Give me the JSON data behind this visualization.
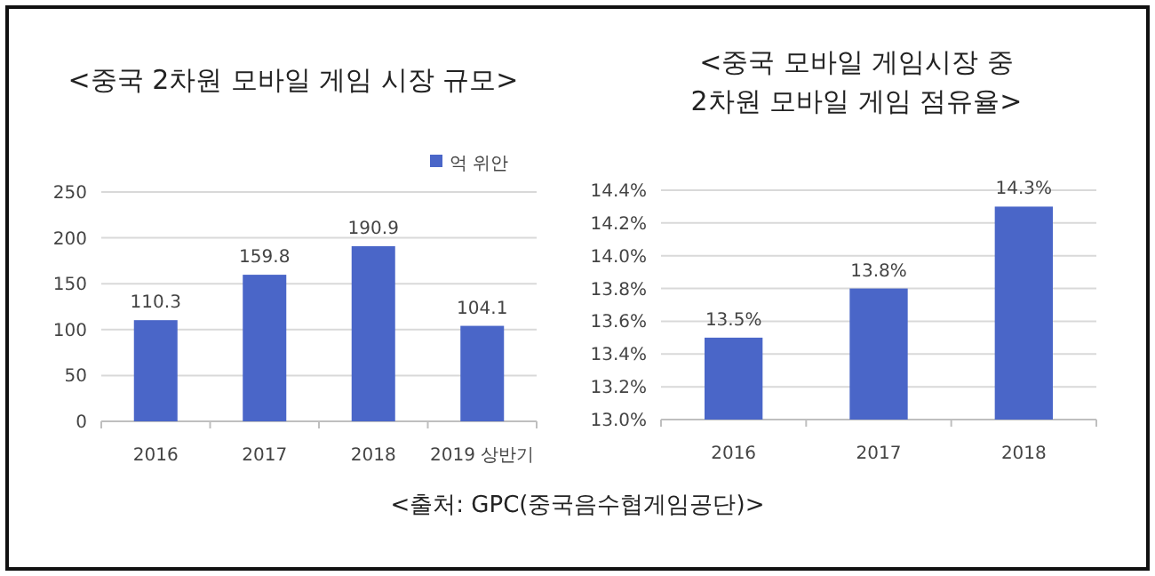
{
  "chart_data": [
    {
      "type": "bar",
      "title": "<중국  2차원 모바일 게임 시장 규모>",
      "categories": [
        "2016",
        "2017",
        "2018",
        "2019 상반기"
      ],
      "series": [
        {
          "name": "억 위안",
          "color": "#4a66c8",
          "values": [
            110.3,
            159.8,
            190.9,
            104.1
          ]
        }
      ],
      "ylim": [
        0,
        250
      ],
      "yticks": [
        0,
        50,
        100,
        150,
        200,
        250
      ],
      "grid": "y",
      "legend": "top right",
      "data_labels": true,
      "annotations": [
        "<출처: GPC(중국음수협게임공단)>"
      ]
    },
    {
      "type": "bar",
      "title": "<중국 모바일 게임시장 중\n2차원 모바일 게임 점유율>",
      "categories": [
        "2016",
        "2017",
        "2018"
      ],
      "values": [
        13.5,
        13.8,
        14.3
      ],
      "color": "#4a66c8",
      "value_labels": [
        "13.5%",
        "13.8%",
        "14.3%"
      ],
      "ylim": [
        13.0,
        14.4
      ],
      "yticks": [
        {
          "value": 13.0,
          "label": "13.0%"
        },
        {
          "value": 13.2,
          "label": "13.2%"
        },
        {
          "value": 13.4,
          "label": "13.4%"
        },
        {
          "value": 13.6,
          "label": "13.6%"
        },
        {
          "value": 13.8,
          "label": "13.8%"
        },
        {
          "value": 14.0,
          "label": "14.0%"
        },
        {
          "value": 14.2,
          "label": "14.2%"
        },
        {
          "value": 14.4,
          "label": "14.4%"
        }
      ],
      "grid": "y"
    }
  ]
}
